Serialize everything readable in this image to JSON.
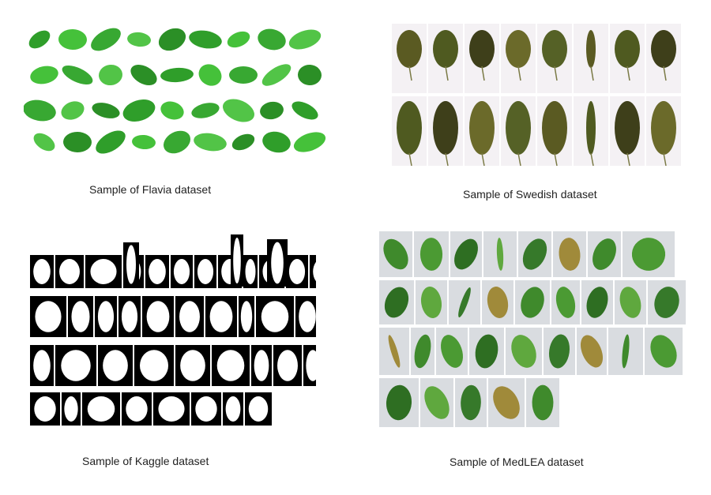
{
  "figure": {
    "panels": [
      {
        "id": "flavia",
        "caption": "Sample of Flavia dataset",
        "background": "#ffffff",
        "leaf_color": "#3fb536"
      },
      {
        "id": "swedish",
        "caption": "Sample of Swedish dataset",
        "background": "#f4f1f4",
        "leaf_color": "#5a5a22"
      },
      {
        "id": "kaggle",
        "caption": "Sample of Kaggle dataset",
        "background": "#000000",
        "leaf_color": "#ffffff"
      },
      {
        "id": "medlea",
        "caption": "Sample of MedLEA dataset",
        "background": "#d9dce0",
        "leaf_color": "#3f8a2c"
      }
    ]
  }
}
